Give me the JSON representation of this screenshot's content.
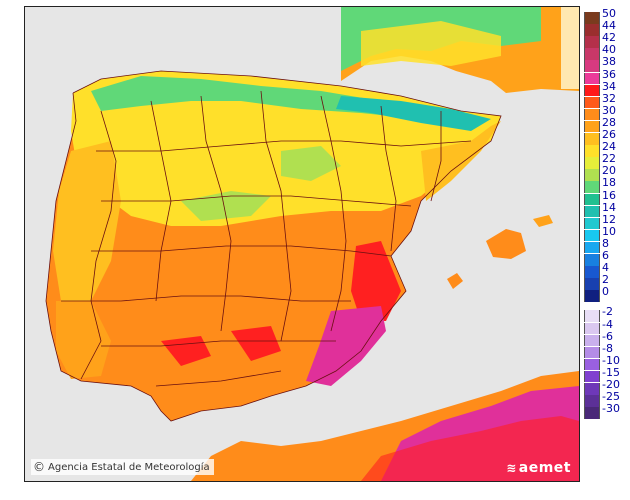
{
  "map": {
    "attribution": "Agencia Estatal de Meteorología",
    "brand": "aemet",
    "colors": {
      "sea": "#e6e6e6",
      "border_line": "#6b1010",
      "very_hot": "#e0309a",
      "hot_red": "#ff2020",
      "warm_orange": "#ff8c1a",
      "orange": "#ffa21a",
      "light_orange": "#ffbf20",
      "yellow": "#ffe02a",
      "yellow_green": "#ccee44",
      "green": "#60d878",
      "teal": "#20c0b0"
    }
  },
  "legend": {
    "positive": [
      {
        "label": "50",
        "color": "#7a3b1e"
      },
      {
        "label": "44",
        "color": "#9a2e2e"
      },
      {
        "label": "42",
        "color": "#b4304a"
      },
      {
        "label": "40",
        "color": "#c83868"
      },
      {
        "label": "38",
        "color": "#d83a80"
      },
      {
        "label": "36",
        "color": "#ec3b9a"
      },
      {
        "label": "34",
        "color": "#ff1a1a"
      },
      {
        "label": "32",
        "color": "#ff5a1a"
      },
      {
        "label": "30",
        "color": "#ff8c1a"
      },
      {
        "label": "28",
        "color": "#ffa21a"
      },
      {
        "label": "26",
        "color": "#ffbf20"
      },
      {
        "label": "24",
        "color": "#ffe02a"
      },
      {
        "label": "22",
        "color": "#e6ee3a"
      },
      {
        "label": "20",
        "color": "#b0e050"
      },
      {
        "label": "18",
        "color": "#60d878"
      },
      {
        "label": "16",
        "color": "#20c090"
      },
      {
        "label": "14",
        "color": "#20c0b0"
      },
      {
        "label": "12",
        "color": "#20c8d0"
      },
      {
        "label": "10",
        "color": "#18c8f0"
      },
      {
        "label": "8",
        "color": "#18a8f0"
      },
      {
        "label": "6",
        "color": "#1880e0"
      },
      {
        "label": "4",
        "color": "#1858d0"
      },
      {
        "label": "2",
        "color": "#1840b0"
      },
      {
        "label": "0",
        "color": "#102080"
      }
    ],
    "negative": [
      {
        "label": "-2",
        "color": "#e8def6"
      },
      {
        "label": "-4",
        "color": "#dac8f0"
      },
      {
        "label": "-6",
        "color": "#c9b0ec"
      },
      {
        "label": "-8",
        "color": "#b48ce6"
      },
      {
        "label": "-10",
        "color": "#9a60e0"
      },
      {
        "label": "-15",
        "color": "#8040d0"
      },
      {
        "label": "-20",
        "color": "#6e38b8"
      },
      {
        "label": "-25",
        "color": "#5c3098"
      },
      {
        "label": "-30",
        "color": "#4a2878"
      }
    ]
  }
}
